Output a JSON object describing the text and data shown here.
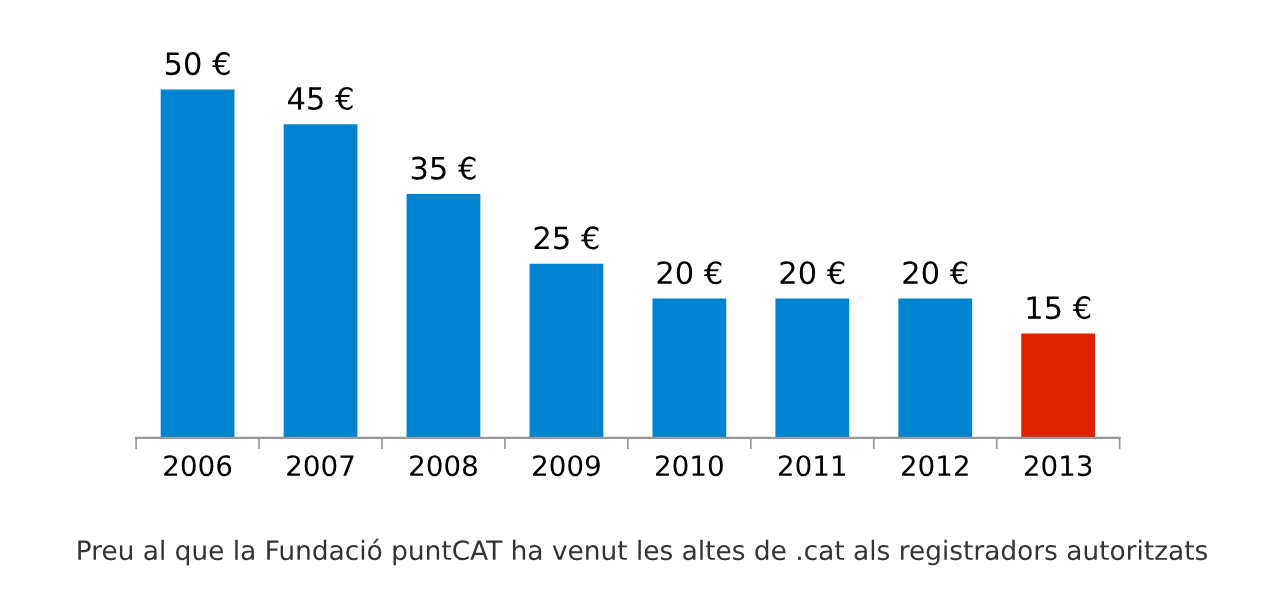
{
  "chart_data": {
    "type": "bar",
    "categories": [
      "2006",
      "2007",
      "2008",
      "2009",
      "2010",
      "2011",
      "2012",
      "2013"
    ],
    "values": [
      50,
      45,
      35,
      25,
      20,
      20,
      20,
      15
    ],
    "colors": [
      "#0084d1",
      "#0084d1",
      "#0084d1",
      "#0084d1",
      "#0084d1",
      "#0084d1",
      "#0084d1",
      "#dd2200"
    ],
    "value_labels": [
      "50 €",
      "45 €",
      "35 €",
      "25 €",
      "20 €",
      "20 €",
      "20 €",
      "15 €"
    ],
    "grid": false,
    "legend": false,
    "annotations": [
      "Preu al que la Fundació puntCAT ha venut les altes de .cat als registradors autoritzats"
    ]
  }
}
